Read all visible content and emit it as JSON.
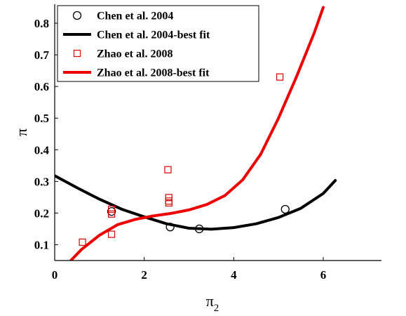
{
  "chart_data": {
    "type": "scatter",
    "xlabel": "π",
    "xlabel_sub": "2",
    "ylabel": "π",
    "xlim": [
      0,
      7.3
    ],
    "ylim": [
      0.05,
      0.86
    ],
    "xticks": [
      0,
      2,
      4,
      6
    ],
    "xtick_labels": [
      "0",
      "2",
      "4",
      "6"
    ],
    "yticks": [
      0.1,
      0.2,
      0.3,
      0.4,
      0.5,
      0.6,
      0.7,
      0.8
    ],
    "ytick_labels": [
      "0.1",
      "0.2",
      "0.3",
      "0.4",
      "0.5",
      "0.6",
      "0.7",
      "0.8"
    ],
    "grid": false,
    "legend_position": "top-left",
    "series": [
      {
        "name": "Chen et al. 2004",
        "kind": "scatter",
        "marker": "circle",
        "color": "#000000",
        "points": [
          [
            1.27,
            0.205
          ],
          [
            2.58,
            0.156
          ],
          [
            3.23,
            0.15
          ],
          [
            5.15,
            0.212
          ]
        ]
      },
      {
        "name": "Chen et al. 2004-best fit",
        "kind": "line",
        "color": "#000000",
        "x": [
          0,
          0.5,
          1.0,
          1.5,
          2.0,
          2.5,
          3.0,
          3.5,
          4.0,
          4.5,
          5.0,
          5.5,
          6.0,
          6.27
        ],
        "y": [
          0.318,
          0.28,
          0.244,
          0.212,
          0.188,
          0.166,
          0.152,
          0.149,
          0.154,
          0.166,
          0.186,
          0.215,
          0.262,
          0.303
        ]
      },
      {
        "name": "Zhao et al. 2008",
        "kind": "scatter",
        "marker": "square",
        "color": "#dd0000",
        "points": [
          [
            0.62,
            0.108
          ],
          [
            1.27,
            0.212
          ],
          [
            1.27,
            0.197
          ],
          [
            1.27,
            0.133
          ],
          [
            2.53,
            0.337
          ],
          [
            2.55,
            0.249
          ],
          [
            2.55,
            0.238
          ],
          [
            2.55,
            0.232
          ],
          [
            5.03,
            0.63
          ]
        ]
      },
      {
        "name": "Zhao et al. 2008-best fit",
        "kind": "line",
        "color": "#ee0000",
        "x": [
          0.36,
          0.6,
          1.0,
          1.4,
          1.8,
          2.2,
          2.6,
          3.0,
          3.4,
          3.8,
          4.2,
          4.6,
          5.0,
          5.4,
          5.8,
          6.0
        ],
        "y": [
          0.05,
          0.085,
          0.13,
          0.163,
          0.18,
          0.191,
          0.199,
          0.21,
          0.227,
          0.255,
          0.305,
          0.385,
          0.5,
          0.63,
          0.77,
          0.85
        ]
      }
    ]
  }
}
